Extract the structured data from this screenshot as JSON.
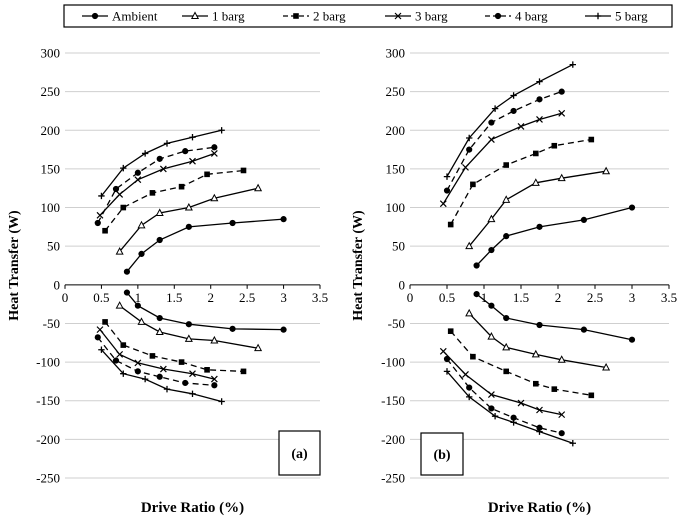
{
  "chart_data": [
    {
      "type": "line",
      "panel_label": "(a)",
      "ylabel": "Heat Transfer (W)",
      "xlabel": "Drive Ratio (%)",
      "xlim": [
        0,
        3.5
      ],
      "ylim": [
        -250,
        300
      ],
      "xticks": [
        "0",
        "0.5",
        "1",
        "1.5",
        "2",
        "2.5",
        "3",
        "3.5"
      ],
      "yticks": [
        "300",
        "250",
        "200",
        "150",
        "100",
        "50",
        "0",
        "-50",
        "-100",
        "-150",
        "-200",
        "-250"
      ],
      "grid": "horizontal",
      "series": [
        {
          "name": "Ambient",
          "style": "solid",
          "marker": "circle",
          "upper": [
            [
              0.85,
              17
            ],
            [
              1.05,
              40
            ],
            [
              1.3,
              58
            ],
            [
              1.7,
              75
            ],
            [
              2.3,
              80
            ],
            [
              3.0,
              85
            ]
          ],
          "lower": [
            [
              0.85,
              -10
            ],
            [
              1.0,
              -27
            ],
            [
              1.3,
              -43
            ],
            [
              1.7,
              -51
            ],
            [
              2.3,
              -57
            ],
            [
              3.0,
              -58
            ]
          ]
        },
        {
          "name": "1 barg",
          "style": "solid",
          "marker": "triangle",
          "upper": [
            [
              0.75,
              43
            ],
            [
              1.05,
              77
            ],
            [
              1.3,
              93
            ],
            [
              1.7,
              100
            ],
            [
              2.05,
              112
            ],
            [
              2.65,
              125
            ]
          ],
          "lower": [
            [
              0.75,
              -27
            ],
            [
              1.05,
              -48
            ],
            [
              1.3,
              -61
            ],
            [
              1.7,
              -70
            ],
            [
              2.05,
              -72
            ],
            [
              2.65,
              -82
            ]
          ]
        },
        {
          "name": "2 barg",
          "style": "dashed",
          "marker": "square",
          "upper": [
            [
              0.55,
              70
            ],
            [
              0.8,
              100
            ],
            [
              1.2,
              119
            ],
            [
              1.6,
              127
            ],
            [
              1.95,
              143
            ],
            [
              2.45,
              148
            ]
          ],
          "lower": [
            [
              0.55,
              -48
            ],
            [
              0.8,
              -78
            ],
            [
              1.2,
              -92
            ],
            [
              1.6,
              -100
            ],
            [
              1.95,
              -110
            ],
            [
              2.45,
              -112
            ]
          ]
        },
        {
          "name": "3 barg",
          "style": "solid",
          "marker": "x",
          "upper": [
            [
              0.48,
              90
            ],
            [
              0.75,
              117
            ],
            [
              1.0,
              136
            ],
            [
              1.35,
              150
            ],
            [
              1.75,
              160
            ],
            [
              2.05,
              170
            ]
          ],
          "lower": [
            [
              0.48,
              -58
            ],
            [
              0.75,
              -90
            ],
            [
              1.0,
              -101
            ],
            [
              1.35,
              -109
            ],
            [
              1.75,
              -115
            ],
            [
              2.05,
              -122
            ]
          ]
        },
        {
          "name": "4 barg",
          "style": "dashed",
          "marker": "circle",
          "upper": [
            [
              0.45,
              80
            ],
            [
              0.7,
              124
            ],
            [
              1.0,
              145
            ],
            [
              1.3,
              163
            ],
            [
              1.65,
              173
            ],
            [
              2.05,
              178
            ]
          ],
          "lower": [
            [
              0.45,
              -68
            ],
            [
              0.7,
              -98
            ],
            [
              1.0,
              -112
            ],
            [
              1.3,
              -119
            ],
            [
              1.65,
              -127
            ],
            [
              2.05,
              -130
            ]
          ]
        },
        {
          "name": "5 barg",
          "style": "solid",
          "marker": "plus",
          "upper": [
            [
              0.5,
              115
            ],
            [
              0.8,
              151
            ],
            [
              1.1,
              170
            ],
            [
              1.4,
              183
            ],
            [
              1.75,
              191
            ],
            [
              2.15,
              200
            ]
          ],
          "lower": [
            [
              0.5,
              -84
            ],
            [
              0.8,
              -115
            ],
            [
              1.1,
              -122
            ],
            [
              1.4,
              -135
            ],
            [
              1.75,
              -141
            ],
            [
              2.15,
              -151
            ]
          ]
        }
      ]
    },
    {
      "type": "line",
      "panel_label": "(b)",
      "ylabel": "Heat Transfer (W)",
      "xlabel": "Drive Ratio (%)",
      "xlim": [
        0,
        3.5
      ],
      "ylim": [
        -250,
        300
      ],
      "xticks": [
        "0",
        "0.5",
        "1",
        "1.5",
        "2",
        "2.5",
        "3",
        "3.5"
      ],
      "yticks": [
        "300",
        "250",
        "200",
        "150",
        "100",
        "50",
        "0",
        "-50",
        "-100",
        "-150",
        "-200",
        "-250"
      ],
      "grid": "horizontal",
      "series": [
        {
          "name": "Ambient",
          "style": "solid",
          "marker": "circle",
          "upper": [
            [
              0.9,
              25
            ],
            [
              1.1,
              45
            ],
            [
              1.3,
              63
            ],
            [
              1.75,
              75
            ],
            [
              2.35,
              84
            ],
            [
              3.0,
              100
            ]
          ],
          "lower": [
            [
              0.9,
              -12
            ],
            [
              1.1,
              -27
            ],
            [
              1.3,
              -43
            ],
            [
              1.75,
              -52
            ],
            [
              2.35,
              -58
            ],
            [
              3.0,
              -71
            ]
          ]
        },
        {
          "name": "1 barg",
          "style": "solid",
          "marker": "triangle",
          "upper": [
            [
              0.8,
              50
            ],
            [
              1.1,
              85
            ],
            [
              1.3,
              110
            ],
            [
              1.7,
              132
            ],
            [
              2.05,
              138
            ],
            [
              2.65,
              147
            ]
          ],
          "lower": [
            [
              0.8,
              -37
            ],
            [
              1.1,
              -67
            ],
            [
              1.3,
              -81
            ],
            [
              1.7,
              -90
            ],
            [
              2.05,
              -97
            ],
            [
              2.65,
              -107
            ]
          ]
        },
        {
          "name": "2 barg",
          "style": "dashed",
          "marker": "square",
          "upper": [
            [
              0.55,
              78
            ],
            [
              0.85,
              130
            ],
            [
              1.3,
              155
            ],
            [
              1.7,
              170
            ],
            [
              1.95,
              180
            ],
            [
              2.45,
              188
            ]
          ],
          "lower": [
            [
              0.55,
              -60
            ],
            [
              0.85,
              -93
            ],
            [
              1.3,
              -112
            ],
            [
              1.7,
              -128
            ],
            [
              1.95,
              -135
            ],
            [
              2.45,
              -143
            ]
          ]
        },
        {
          "name": "3 barg",
          "style": "solid",
          "marker": "x",
          "upper": [
            [
              0.45,
              105
            ],
            [
              0.75,
              152
            ],
            [
              1.1,
              188
            ],
            [
              1.5,
              205
            ],
            [
              1.75,
              214
            ],
            [
              2.05,
              222
            ]
          ],
          "lower": [
            [
              0.45,
              -86
            ],
            [
              0.75,
              -116
            ],
            [
              1.1,
              -142
            ],
            [
              1.5,
              -153
            ],
            [
              1.75,
              -162
            ],
            [
              2.05,
              -168
            ]
          ]
        },
        {
          "name": "4 barg",
          "style": "dashed",
          "marker": "circle",
          "upper": [
            [
              0.5,
              122
            ],
            [
              0.8,
              175
            ],
            [
              1.1,
              210
            ],
            [
              1.4,
              225
            ],
            [
              1.75,
              240
            ],
            [
              2.05,
              250
            ]
          ],
          "lower": [
            [
              0.5,
              -96
            ],
            [
              0.8,
              -133
            ],
            [
              1.1,
              -160
            ],
            [
              1.4,
              -172
            ],
            [
              1.75,
              -185
            ],
            [
              2.05,
              -192
            ]
          ]
        },
        {
          "name": "5 barg",
          "style": "solid",
          "marker": "plus",
          "upper": [
            [
              0.5,
              140
            ],
            [
              0.8,
              190
            ],
            [
              1.15,
              228
            ],
            [
              1.4,
              245
            ],
            [
              1.75,
              263
            ],
            [
              2.2,
              285
            ]
          ],
          "lower": [
            [
              0.5,
              -112
            ],
            [
              0.8,
              -145
            ],
            [
              1.15,
              -170
            ],
            [
              1.4,
              -178
            ],
            [
              1.75,
              -190
            ],
            [
              2.2,
              -205
            ]
          ]
        }
      ]
    }
  ],
  "legend": {
    "placement": "top",
    "entries": [
      "Ambient",
      "1 barg",
      "2 barg",
      "3 barg",
      "4 barg",
      "5 barg"
    ]
  }
}
